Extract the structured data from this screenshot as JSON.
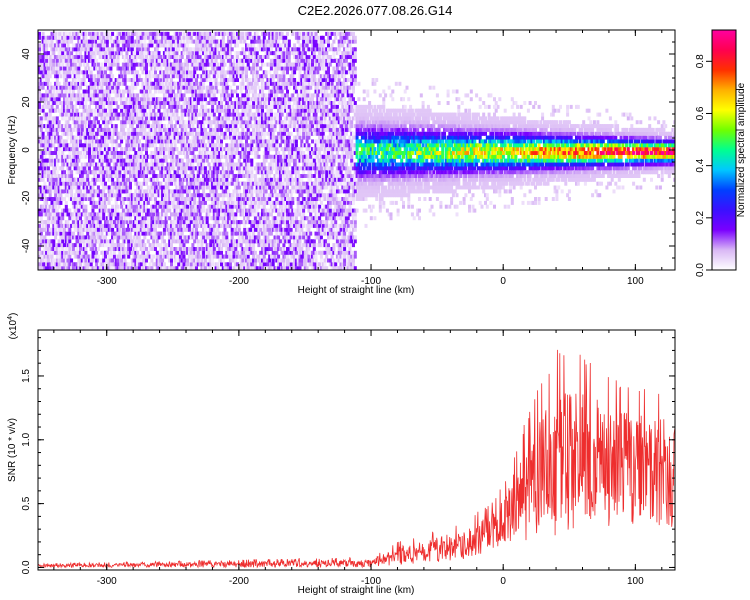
{
  "title": "C2E2.2026.077.08.26.G14",
  "chart_data": [
    {
      "type": "heatmap",
      "title": "C2E2.2026.077.08.26.G14",
      "xlabel": "Height of straight line (km)",
      "ylabel": "Frequency (Hz)",
      "xlim": [
        -352,
        130
      ],
      "ylim": [
        -50,
        50
      ],
      "xticks": [
        -300,
        -200,
        -100,
        0,
        100
      ],
      "xtick_labels": [
        "-300",
        "-200",
        "-100",
        "0",
        "100"
      ],
      "yticks": [
        -40,
        -20,
        0,
        20,
        40
      ],
      "ytick_labels": [
        "-40",
        "-20",
        "0",
        "20",
        "40"
      ],
      "noise_region_x": [
        -352,
        -112
      ],
      "signal_track": {
        "center_hz": 0,
        "spread_hz_start": 9,
        "spread_hz_end": 4
      },
      "colorbar": {
        "label": "Normalized spectral amplitude",
        "range": [
          0,
          0.92
        ],
        "ticks": [
          0.0,
          0.2,
          0.4,
          0.6,
          0.8
        ],
        "tick_labels": [
          "0.0",
          "0.2",
          "0.4",
          "0.6",
          "0.8"
        ],
        "colors": [
          "#ffffff",
          "#d9b8f5",
          "#7a00ff",
          "#3a10ff",
          "#0040ff",
          "#00c8ff",
          "#00ff90",
          "#70ff00",
          "#ffff00",
          "#ffb000",
          "#ff3000",
          "#ff0050",
          "#ff00a0"
        ]
      }
    },
    {
      "type": "line",
      "xlabel": "Height of straight line (km)",
      "ylabel": "SNR (10 * v/v)",
      "y_multiplier": "(x10",
      "y_multiplier_exp": "4",
      "y_multiplier_close": ")",
      "xlim": [
        -352,
        130
      ],
      "ylim": [
        -0.02,
        1.86
      ],
      "xticks": [
        -300,
        -200,
        -100,
        0,
        100
      ],
      "xtick_labels": [
        "-300",
        "-200",
        "-100",
        "0",
        "100"
      ],
      "yticks": [
        0.0,
        0.5,
        1.0,
        1.5
      ],
      "ytick_labels": [
        "0.0",
        "0.5",
        "1.0",
        "1.5"
      ],
      "line_color": "#ee2e2e",
      "envelope_km": [
        -352,
        -100,
        -80,
        -40,
        -10,
        0,
        20,
        40,
        60,
        80,
        100,
        130
      ],
      "envelope_snr": [
        0.03,
        0.08,
        0.2,
        0.32,
        0.5,
        0.65,
        1.25,
        1.72,
        1.7,
        1.5,
        1.45,
        1.4
      ],
      "baseline_km": [
        -352,
        -100,
        -80,
        -40,
        -10,
        0,
        20,
        40,
        60,
        80,
        100,
        130
      ],
      "baseline_snr": [
        0.0,
        0.0,
        0.02,
        0.05,
        0.1,
        0.15,
        0.2,
        0.25,
        0.3,
        0.3,
        0.3,
        0.3
      ]
    }
  ]
}
